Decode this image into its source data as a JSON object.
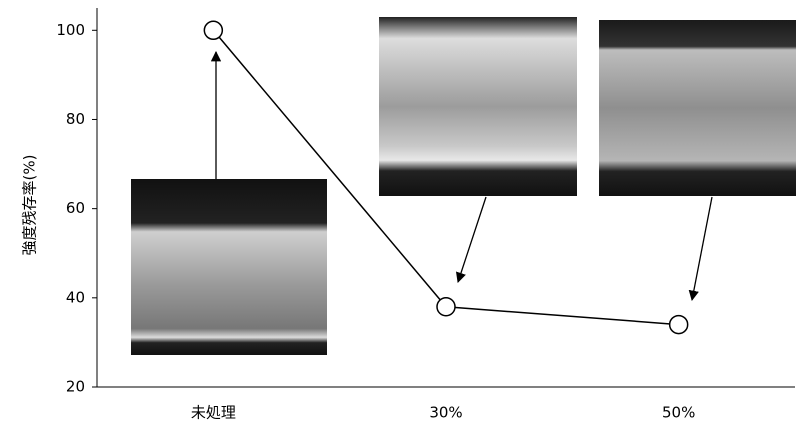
{
  "chart_data": {
    "type": "line",
    "y_label": "強度残存率(%)",
    "categories": [
      "未処理",
      "30%",
      "50%"
    ],
    "values": [
      100,
      38,
      34
    ],
    "color": "#000000",
    "ylim": [
      20,
      105
    ],
    "yticks": [
      20,
      40,
      60,
      80,
      100
    ]
  }
}
